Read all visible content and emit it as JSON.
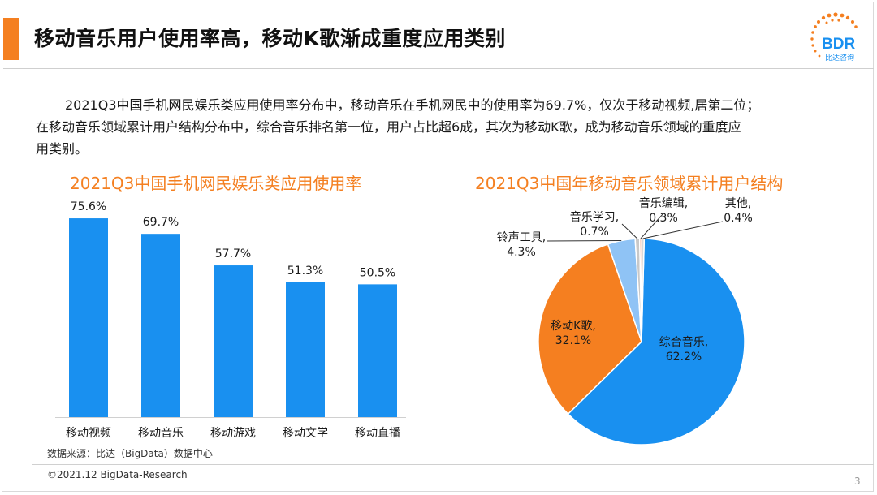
{
  "header": {
    "title": "移动音乐用户使用率高，移动K歌渐成重度应用类别",
    "logo_text": "BDR",
    "logo_subtitle": "比达咨询"
  },
  "intro": {
    "line1": "2021Q3中国手机网民娱乐类应用使用率分布中，移动音乐在手机网民中的使用率为69.7%，仅次于移动视频,居第二位；",
    "line2": "在移动音乐领域累计用户结构分布中，综合音乐排名第一位，用户占比超6成，其次为移动K歌，成为移动音乐领域的重度应",
    "line3": "用类别。"
  },
  "chart_data": [
    {
      "type": "bar",
      "title": "2021Q3中国手机网民娱乐类应用使用率",
      "categories": [
        "移动视频",
        "移动音乐",
        "移动游戏",
        "移动文学",
        "移动直播"
      ],
      "values": [
        75.6,
        69.7,
        57.7,
        51.3,
        50.5
      ],
      "value_labels": [
        "75.6%",
        "69.7%",
        "57.7%",
        "51.3%",
        "50.5%"
      ],
      "ylim": [
        0,
        80
      ],
      "color": "#1990f0",
      "grid": false
    },
    {
      "type": "pie",
      "title": "2021Q3中国年移动音乐领域累计用户结构",
      "slices": [
        {
          "label": "综合音乐,",
          "pct": "62.2%",
          "value": 62.2,
          "color": "#1990f0"
        },
        {
          "label": "移动K歌,",
          "pct": "32.1%",
          "value": 32.1,
          "color": "#f57f20"
        },
        {
          "label": "铃声工具,",
          "pct": "4.3%",
          "value": 4.3,
          "color": "#8fc3f5"
        },
        {
          "label": "音乐学习,",
          "pct": "0.7%",
          "value": 0.7,
          "color": "#c8c8c8"
        },
        {
          "label": "音乐编辑,",
          "pct": "0.3%",
          "value": 0.3,
          "color": "#f3a98a"
        },
        {
          "label": "其他,",
          "pct": "0.4%",
          "value": 0.4,
          "color": "#d9d9d9"
        }
      ]
    }
  ],
  "source": "数据来源：比达（BigData）数据中心",
  "footer": {
    "copyright": "©2021.12 BigData-Research",
    "page": "3"
  }
}
